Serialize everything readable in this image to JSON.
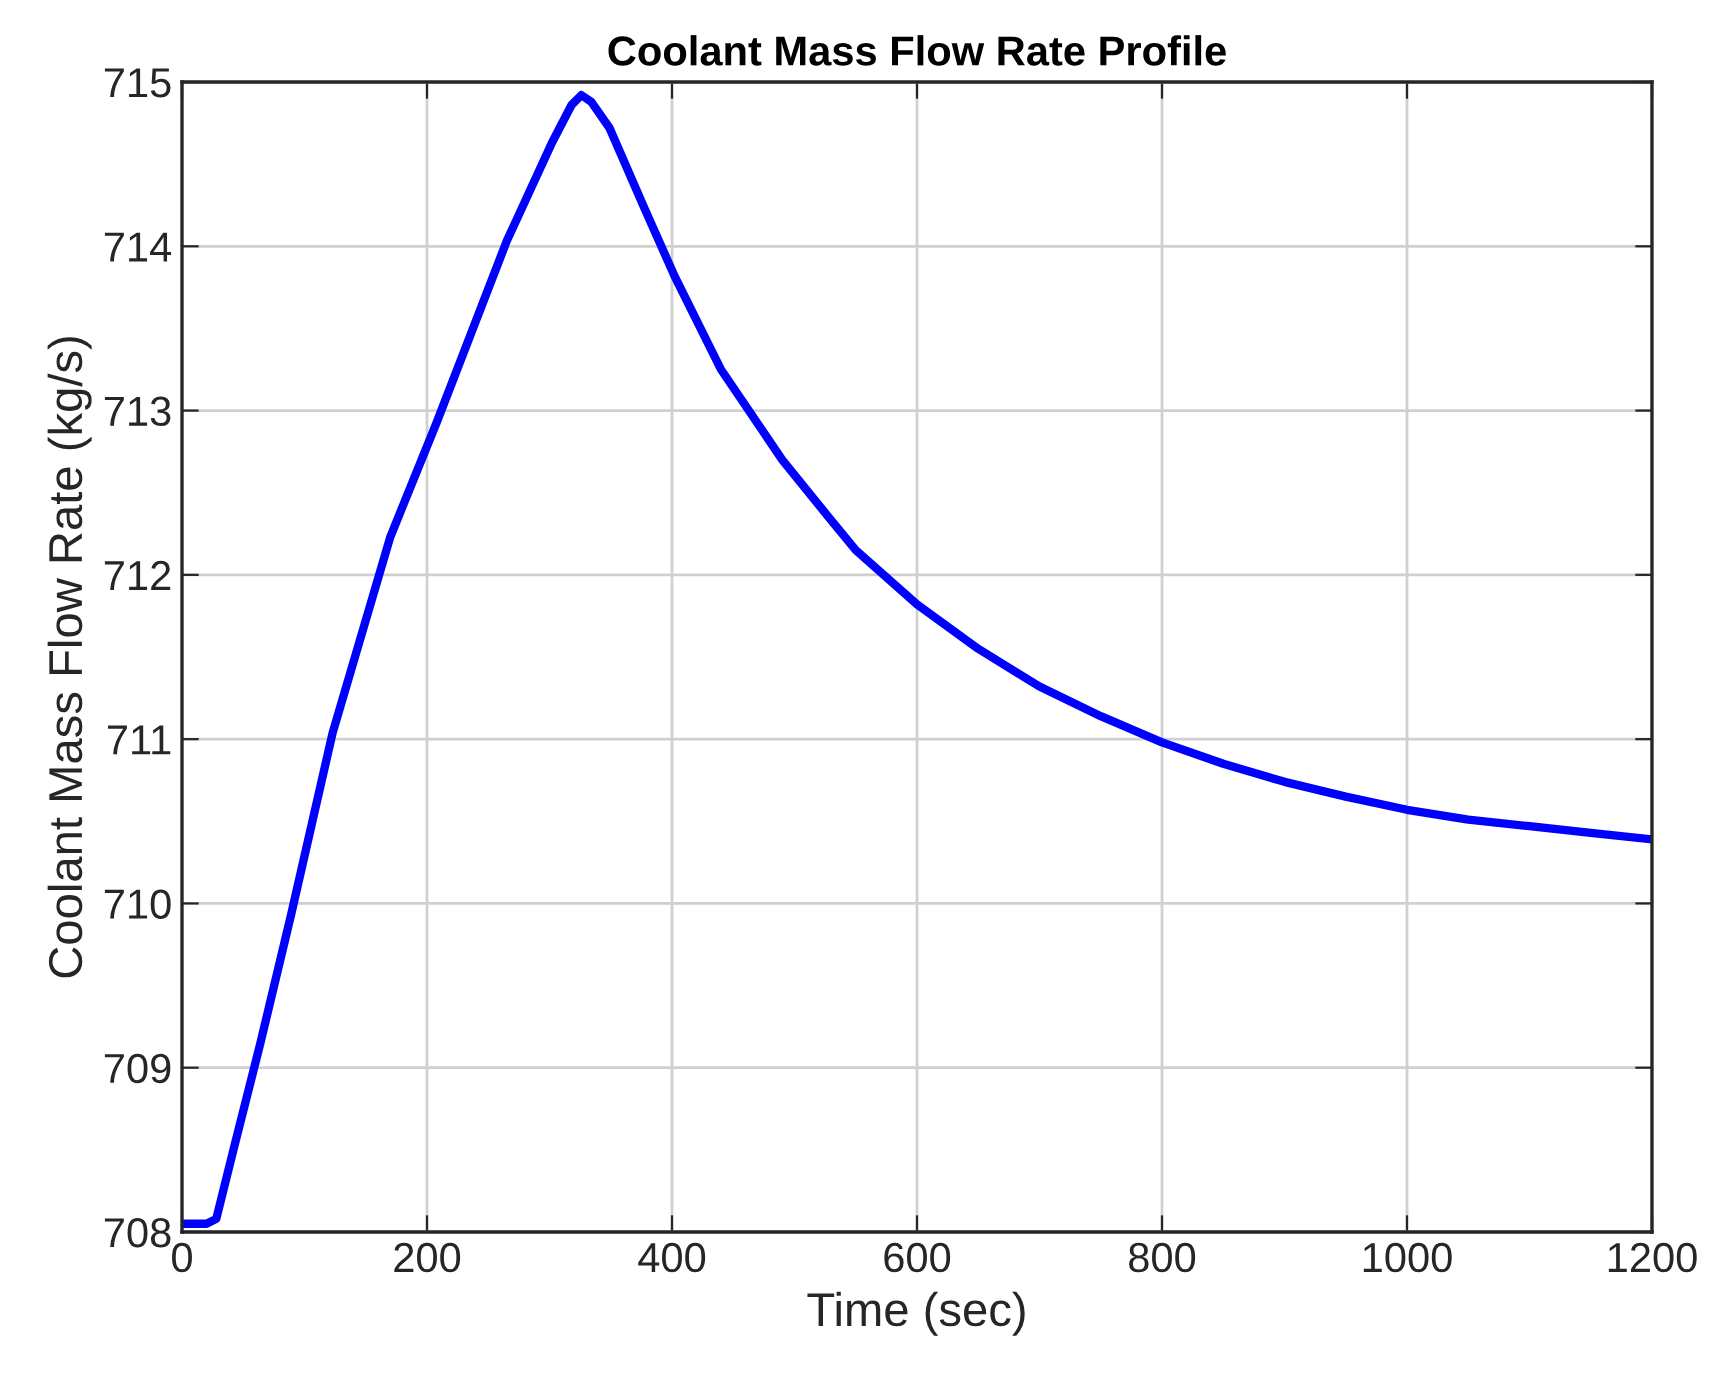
{
  "chart_data": {
    "type": "line",
    "title": "Coolant Mass Flow Rate Profile",
    "xlabel": "Time (sec)",
    "ylabel": "Coolant Mass Flow Rate (kg/s)",
    "x": [
      0,
      20,
      28,
      42,
      64,
      89,
      123,
      170,
      208,
      265,
      302,
      318,
      326,
      334,
      349,
      377,
      402,
      440,
      490,
      528,
      550,
      600,
      650,
      700,
      750,
      800,
      850,
      900,
      950,
      1000,
      1050,
      1100,
      1150,
      1200
    ],
    "series": [
      {
        "color": "#0000ff",
        "values": [
          708.05,
          708.05,
          708.08,
          708.5,
          709.15,
          709.93,
          711.04,
          712.23,
          712.93,
          714.03,
          714.63,
          714.86,
          714.92,
          714.88,
          714.72,
          714.24,
          713.82,
          713.25,
          712.7,
          712.35,
          712.15,
          711.82,
          711.55,
          711.32,
          711.14,
          710.98,
          710.85,
          710.74,
          710.65,
          710.57,
          710.51,
          710.47,
          710.43,
          710.39
        ]
      }
    ],
    "xlim": [
      0,
      1200
    ],
    "xticks": [
      0,
      200,
      400,
      600,
      800,
      1000,
      1200
    ],
    "ylim": [
      708,
      715
    ],
    "yticks": [
      708,
      709,
      710,
      711,
      712,
      713,
      714,
      715
    ],
    "grid": true,
    "legend": false,
    "marker": "none",
    "line_style": "solid"
  }
}
